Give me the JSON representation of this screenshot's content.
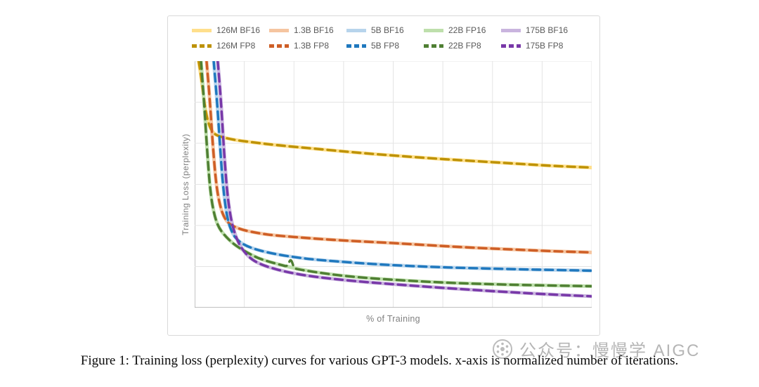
{
  "page": {
    "caption": "Figure 1: Training loss (perplexity) curves for various GPT-3 models. x-axis is normalized number of iterations.",
    "watermark_text": "公众号：慢慢学 AIGC"
  },
  "chart_data": {
    "type": "line",
    "title": "",
    "xlabel": "% of Training",
    "ylabel": "Training Loss (perplexity)",
    "xlim": [
      0,
      100
    ],
    "ylim": [
      0,
      10
    ],
    "grid": true,
    "tick_labels_shown": false,
    "legend_position": "top",
    "legend_rows": 2,
    "series": [
      {
        "name": "126M BF16",
        "color": "#FFDF8C",
        "style": "solid",
        "points": [
          [
            1.0,
            10
          ],
          [
            1.8,
            9.2
          ],
          [
            2.6,
            8.1
          ],
          [
            3.4,
            7.5
          ],
          [
            4.5,
            7.1
          ],
          [
            6,
            6.95
          ],
          [
            10,
            6.8
          ],
          [
            15,
            6.7
          ],
          [
            20,
            6.6
          ],
          [
            30,
            6.45
          ],
          [
            40,
            6.3
          ],
          [
            50,
            6.17
          ],
          [
            60,
            6.05
          ],
          [
            70,
            5.95
          ],
          [
            80,
            5.85
          ],
          [
            90,
            5.75
          ],
          [
            100,
            5.68
          ]
        ]
      },
      {
        "name": "1.3B BF16",
        "color": "#F5C5A0",
        "style": "solid",
        "points": [
          [
            3.0,
            10
          ],
          [
            3.8,
            8.5
          ],
          [
            4.6,
            6.5
          ],
          [
            5.4,
            5.0
          ],
          [
            6.4,
            4.1
          ],
          [
            7.5,
            3.62
          ],
          [
            9,
            3.35
          ],
          [
            12,
            3.15
          ],
          [
            16,
            3.02
          ],
          [
            20,
            2.93
          ],
          [
            30,
            2.8
          ],
          [
            40,
            2.7
          ],
          [
            50,
            2.62
          ],
          [
            60,
            2.52
          ],
          [
            70,
            2.43
          ],
          [
            80,
            2.36
          ],
          [
            90,
            2.29
          ],
          [
            100,
            2.24
          ]
        ]
      },
      {
        "name": "5B BF16",
        "color": "#B7D4EC",
        "style": "solid",
        "points": [
          [
            4.8,
            10
          ],
          [
            5.6,
            8.5
          ],
          [
            6.4,
            6.5
          ],
          [
            7.2,
            4.8
          ],
          [
            8.2,
            3.6
          ],
          [
            9.5,
            3.0
          ],
          [
            11,
            2.7
          ],
          [
            13,
            2.5
          ],
          [
            16,
            2.33
          ],
          [
            20,
            2.18
          ],
          [
            25,
            2.05
          ],
          [
            30,
            1.95
          ],
          [
            40,
            1.82
          ],
          [
            50,
            1.72
          ],
          [
            60,
            1.65
          ],
          [
            70,
            1.6
          ],
          [
            80,
            1.56
          ],
          [
            90,
            1.53
          ],
          [
            100,
            1.5
          ]
        ]
      },
      {
        "name": "22B FP16",
        "color": "#BEDFAC",
        "style": "solid",
        "points": [
          [
            1.6,
            10
          ],
          [
            2.4,
            8.3
          ],
          [
            3.2,
            6.2
          ],
          [
            4.0,
            4.6
          ],
          [
            5.0,
            3.7
          ],
          [
            6.2,
            3.2
          ],
          [
            8,
            2.85
          ],
          [
            10,
            2.55
          ],
          [
            13,
            2.25
          ],
          [
            16,
            2.0
          ],
          [
            19,
            1.85
          ],
          [
            22,
            1.72
          ],
          [
            26,
            1.57
          ],
          [
            32,
            1.4
          ],
          [
            38,
            1.28
          ],
          [
            45,
            1.18
          ],
          [
            55,
            1.08
          ],
          [
            65,
            1.0
          ],
          [
            75,
            0.95
          ],
          [
            85,
            0.91
          ],
          [
            100,
            0.87
          ]
        ]
      },
      {
        "name": "175B BF16",
        "color": "#C9B4DE",
        "style": "solid",
        "points": [
          [
            5.8,
            10
          ],
          [
            6.6,
            8.5
          ],
          [
            7.4,
            6.3
          ],
          [
            8.2,
            4.6
          ],
          [
            9.2,
            3.5
          ],
          [
            10.5,
            2.8
          ],
          [
            12,
            2.35
          ],
          [
            14,
            2.0
          ],
          [
            16,
            1.8
          ],
          [
            19,
            1.62
          ],
          [
            23,
            1.45
          ],
          [
            28,
            1.3
          ],
          [
            34,
            1.18
          ],
          [
            42,
            1.05
          ],
          [
            50,
            0.95
          ],
          [
            60,
            0.83
          ],
          [
            70,
            0.72
          ],
          [
            80,
            0.62
          ],
          [
            90,
            0.53
          ],
          [
            100,
            0.46
          ]
        ]
      },
      {
        "name": "126M FP8",
        "color": "#BD9206",
        "style": "dashed",
        "points": [
          [
            1.0,
            10
          ],
          [
            1.8,
            9.2
          ],
          [
            2.6,
            8.1
          ],
          [
            3.4,
            7.5
          ],
          [
            4.5,
            7.1
          ],
          [
            6,
            6.95
          ],
          [
            10,
            6.8
          ],
          [
            15,
            6.7
          ],
          [
            20,
            6.6
          ],
          [
            30,
            6.45
          ],
          [
            40,
            6.3
          ],
          [
            50,
            6.17
          ],
          [
            60,
            6.05
          ],
          [
            70,
            5.95
          ],
          [
            80,
            5.85
          ],
          [
            90,
            5.75
          ],
          [
            100,
            5.68
          ]
        ]
      },
      {
        "name": "1.3B FP8",
        "color": "#CE5E26",
        "style": "dashed",
        "points": [
          [
            3.0,
            10
          ],
          [
            3.8,
            8.5
          ],
          [
            4.6,
            6.5
          ],
          [
            5.4,
            5.0
          ],
          [
            6.4,
            4.1
          ],
          [
            7.5,
            3.62
          ],
          [
            9,
            3.35
          ],
          [
            12,
            3.15
          ],
          [
            16,
            3.02
          ],
          [
            20,
            2.93
          ],
          [
            30,
            2.8
          ],
          [
            40,
            2.7
          ],
          [
            50,
            2.62
          ],
          [
            60,
            2.52
          ],
          [
            70,
            2.43
          ],
          [
            80,
            2.36
          ],
          [
            90,
            2.29
          ],
          [
            100,
            2.24
          ]
        ]
      },
      {
        "name": "5B FP8",
        "color": "#1F78BE",
        "style": "dashed",
        "points": [
          [
            4.8,
            10
          ],
          [
            5.6,
            8.5
          ],
          [
            6.4,
            6.5
          ],
          [
            7.2,
            4.8
          ],
          [
            8.2,
            3.6
          ],
          [
            9.5,
            3.0
          ],
          [
            11,
            2.7
          ],
          [
            13,
            2.5
          ],
          [
            16,
            2.33
          ],
          [
            20,
            2.18
          ],
          [
            25,
            2.05
          ],
          [
            30,
            1.95
          ],
          [
            40,
            1.82
          ],
          [
            50,
            1.72
          ],
          [
            60,
            1.65
          ],
          [
            70,
            1.6
          ],
          [
            80,
            1.56
          ],
          [
            90,
            1.53
          ],
          [
            100,
            1.5
          ]
        ]
      },
      {
        "name": "22B FP8",
        "color": "#4F7F33",
        "style": "dashed",
        "points": [
          [
            1.6,
            10
          ],
          [
            2.4,
            8.3
          ],
          [
            3.2,
            6.2
          ],
          [
            4.0,
            4.6
          ],
          [
            5.0,
            3.7
          ],
          [
            6.2,
            3.2
          ],
          [
            8,
            2.85
          ],
          [
            10,
            2.55
          ],
          [
            13,
            2.25
          ],
          [
            16,
            2.0
          ],
          [
            19,
            1.85
          ],
          [
            22,
            1.72
          ],
          [
            23.4,
            1.66
          ],
          [
            24.2,
            2.02
          ],
          [
            25,
            1.6
          ],
          [
            26,
            1.55
          ],
          [
            32,
            1.4
          ],
          [
            38,
            1.28
          ],
          [
            45,
            1.18
          ],
          [
            55,
            1.08
          ],
          [
            65,
            1.0
          ],
          [
            75,
            0.95
          ],
          [
            85,
            0.91
          ],
          [
            100,
            0.87
          ]
        ]
      },
      {
        "name": "175B FP8",
        "color": "#7838A8",
        "style": "dashed",
        "points": [
          [
            5.8,
            10
          ],
          [
            6.6,
            8.5
          ],
          [
            7.4,
            6.3
          ],
          [
            8.2,
            4.6
          ],
          [
            9.2,
            3.5
          ],
          [
            10.5,
            2.8
          ],
          [
            12,
            2.35
          ],
          [
            14,
            2.0
          ],
          [
            16,
            1.8
          ],
          [
            19,
            1.62
          ],
          [
            23,
            1.45
          ],
          [
            28,
            1.3
          ],
          [
            34,
            1.18
          ],
          [
            42,
            1.05
          ],
          [
            50,
            0.95
          ],
          [
            60,
            0.83
          ],
          [
            70,
            0.72
          ],
          [
            80,
            0.62
          ],
          [
            90,
            0.53
          ],
          [
            100,
            0.46
          ]
        ]
      }
    ]
  }
}
